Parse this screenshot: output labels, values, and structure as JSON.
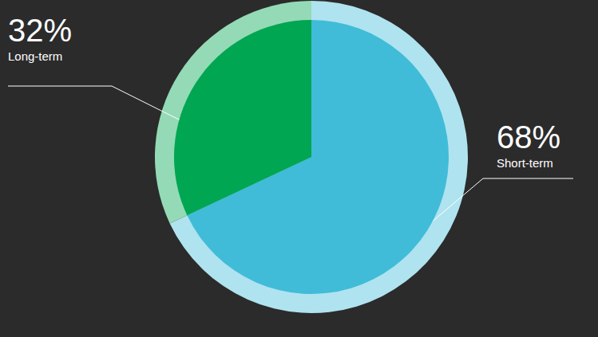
{
  "chart_data": {
    "type": "pie",
    "categories": [
      "Short-term",
      "Long-term"
    ],
    "values": [
      68,
      32
    ],
    "value_labels": [
      "68%",
      "32%"
    ],
    "colors": [
      "#40bcd8",
      "#00a651"
    ],
    "data_labels": true
  }
}
